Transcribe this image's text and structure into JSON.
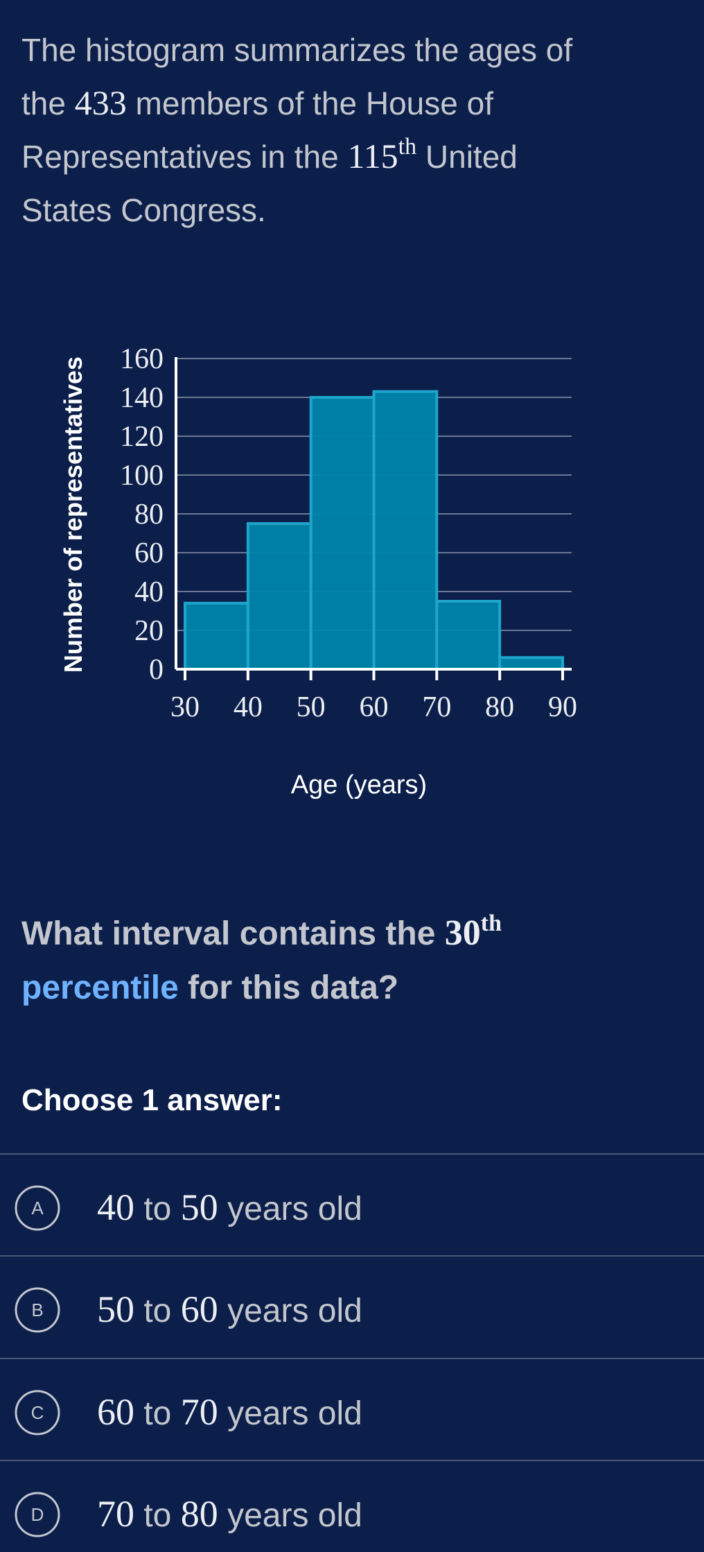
{
  "intro": [
    "The histogram summarizes the ages of",
    "the",
    "433",
    "members of the House of",
    "Representatives in the",
    "115",
    "th",
    "United",
    "States Congress."
  ],
  "chart_data": {
    "type": "histogram",
    "x_label": "Age (years)",
    "y_label": "Number of representatives",
    "bins": [
      30,
      40,
      50,
      60,
      70,
      80,
      90
    ],
    "counts": [
      34,
      75,
      140,
      143,
      35,
      6
    ],
    "color": "#0085ab",
    "edge_color": "#1ea5cc",
    "xlim": [
      30,
      90
    ],
    "xticks": [
      30,
      40,
      50,
      60,
      70,
      80,
      90
    ],
    "ylim": [
      0,
      160
    ],
    "yticks": [
      0,
      20,
      40,
      60,
      80,
      100,
      120,
      140,
      160
    ],
    "grid": true
  },
  "question": {
    "parts": [
      "What interval contains the",
      "30",
      "th",
      "percentile",
      "for this data?"
    ]
  },
  "prompt": "Choose 1 answer:",
  "choices": [
    {
      "letter": "A",
      "low": "40",
      "connector": "to",
      "high": "50",
      "unit": "years old"
    },
    {
      "letter": "B",
      "low": "50",
      "connector": "to",
      "high": "60",
      "unit": "years old"
    },
    {
      "letter": "C",
      "low": "60",
      "connector": "to",
      "high": "70",
      "unit": "years old"
    },
    {
      "letter": "D",
      "low": "70",
      "connector": "to",
      "high": "80",
      "unit": "years old"
    }
  ]
}
